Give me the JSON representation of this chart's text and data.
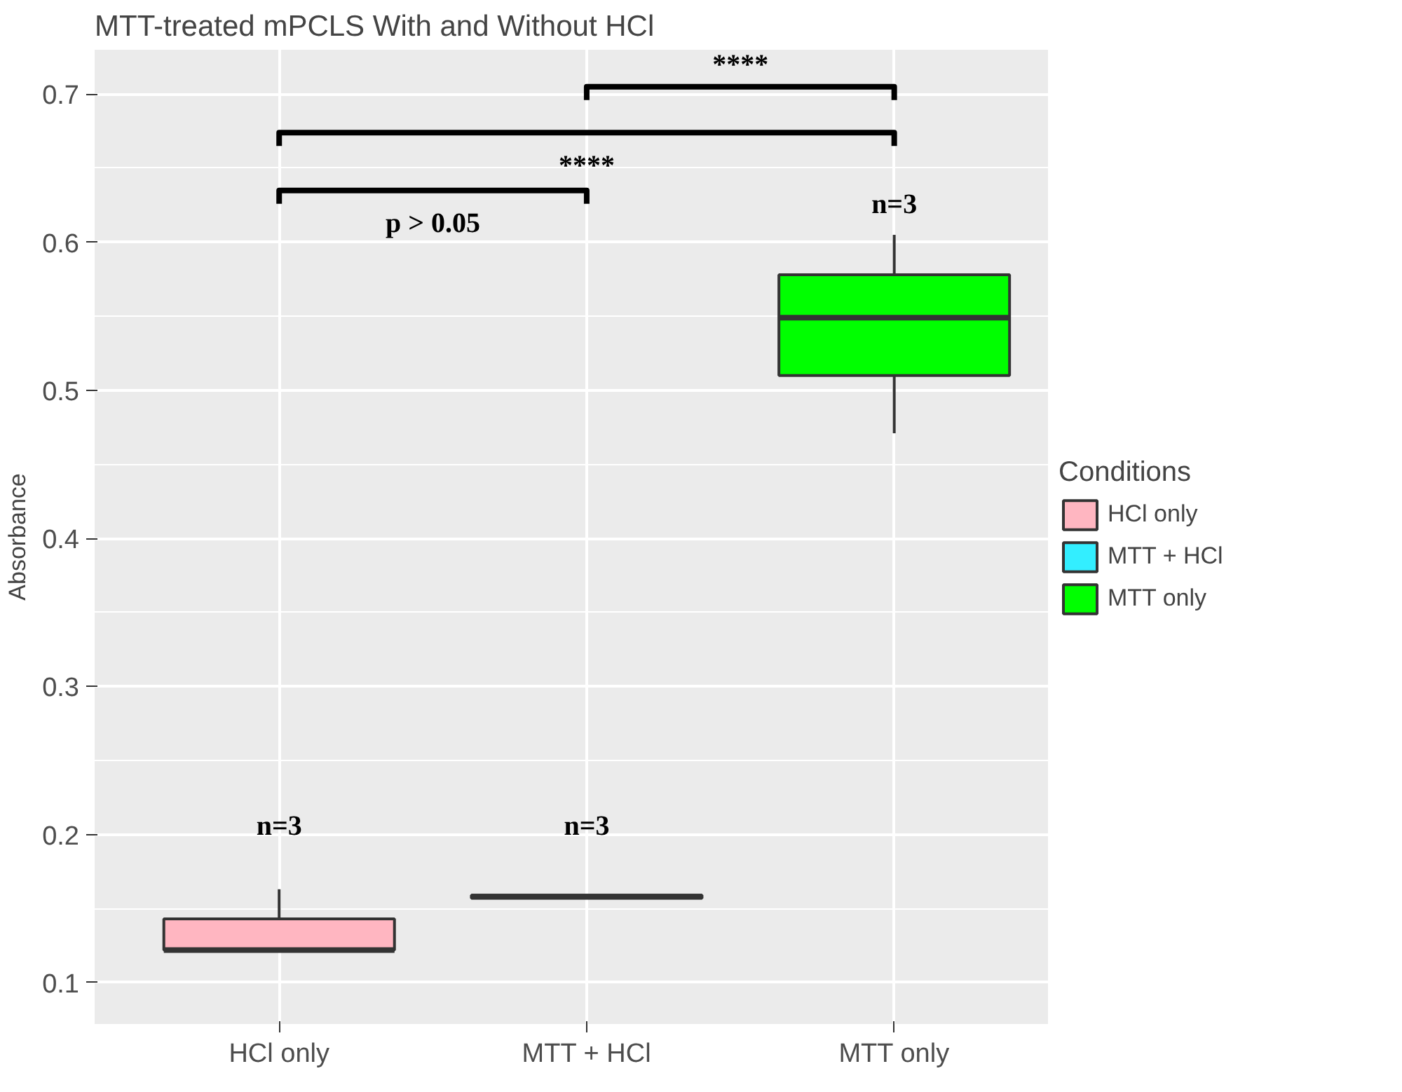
{
  "chart_data": {
    "type": "box",
    "title": "MTT-treated mPCLS With and Without HCl",
    "ylabel": "Absorbance",
    "legend_title": "Conditions",
    "categories": [
      "HCl only",
      "MTT + HCl",
      "MTT only"
    ],
    "series": [
      {
        "name": "HCl only",
        "color": "#ffb6c1",
        "boxes": [
          {
            "low": 0.122,
            "q1": 0.122,
            "median": 0.122,
            "q3": 0.143,
            "high": 0.163
          },
          null,
          null
        ]
      },
      {
        "name": "MTT + HCl",
        "color": "#33eeff",
        "boxes": [
          null,
          {
            "low": 0.157,
            "q1": 0.157,
            "median": 0.158,
            "q3": 0.159,
            "high": 0.159
          },
          null
        ]
      },
      {
        "name": "MTT only",
        "color": "#00ff00",
        "boxes": [
          null,
          null,
          {
            "low": 0.471,
            "q1": 0.51,
            "median": 0.549,
            "q3": 0.578,
            "high": 0.605
          }
        ]
      }
    ],
    "ylim": [
      0.072,
      0.73
    ],
    "yticks": [
      0.1,
      0.2,
      0.3,
      0.4,
      0.5,
      0.6,
      0.7
    ],
    "grid": true,
    "legend": "right",
    "annotations": [
      "n=3",
      "n=3",
      "n=3",
      "p > 0.05",
      "****",
      "****"
    ]
  }
}
